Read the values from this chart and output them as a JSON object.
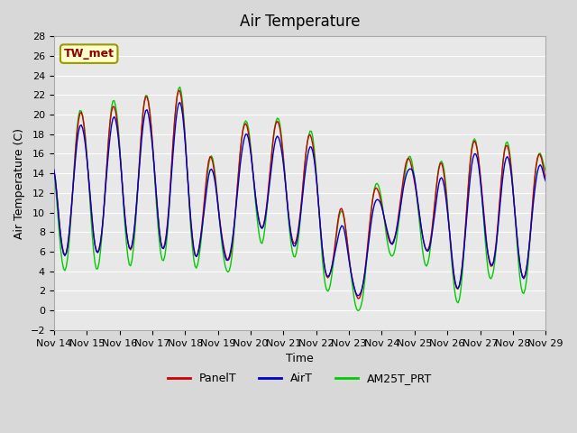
{
  "title": "Air Temperature",
  "ylabel": "Air Temperature (C)",
  "xlabel": "Time",
  "ylim": [
    -2,
    28
  ],
  "yticks": [
    -2,
    0,
    2,
    4,
    6,
    8,
    10,
    12,
    14,
    16,
    18,
    20,
    22,
    24,
    26,
    28
  ],
  "xtick_labels": [
    "Nov 14",
    "Nov 15",
    "Nov 16",
    "Nov 17",
    "Nov 18",
    "Nov 19",
    "Nov 20",
    "Nov 21",
    "Nov 22",
    "Nov 23",
    "Nov 24",
    "Nov 25",
    "Nov 26",
    "Nov 27",
    "Nov 28",
    "Nov 29"
  ],
  "legend_labels": [
    "PanelT",
    "AirT",
    "AM25T_PRT"
  ],
  "legend_colors": [
    "#cc0000",
    "#0000cc",
    "#00cc00"
  ],
  "station_label": "TW_met",
  "station_label_color": "#8b0000",
  "station_box_facecolor": "#ffffcc",
  "station_box_edgecolor": "#999900",
  "bg_color": "#e8e8e8",
  "plot_bg_color": "#e8e8e8",
  "line_width": 1.0,
  "title_fontsize": 12,
  "axis_fontsize": 9,
  "tick_fontsize": 8
}
